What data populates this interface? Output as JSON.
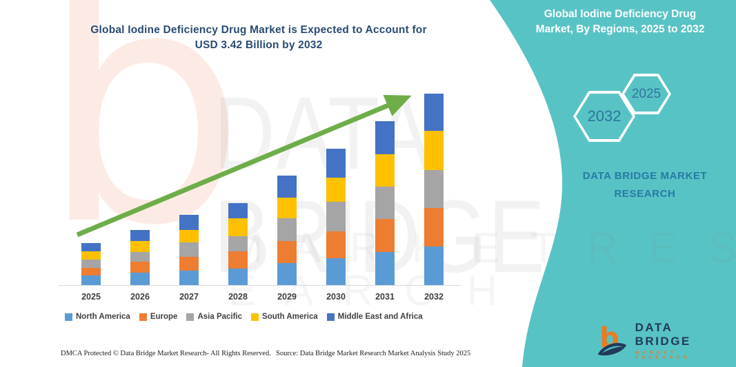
{
  "theme": {
    "teal": "#58C3C4",
    "title_navy": "#2A4B74",
    "hex_text": "#2F749E",
    "brand_blue": "#2779A6",
    "arrow_green": "#6EAD49",
    "axis_gray": "#D8D8D8",
    "label_gray": "#3F3F3F",
    "logo_navy": "#21395C",
    "logo_orange": "#E87C23",
    "watermark_peach": "#FCEBE4",
    "watermark_gray": "rgba(130,130,130,0.10)",
    "watermark_gray2": "rgba(130,130,130,0.08)"
  },
  "header": {
    "title": "Global Iodine Deficiency Drug Market is Expected to Account for\nUSD 3.42 Billion by 2032"
  },
  "side_panel": {
    "title": "Global Iodine Deficiency Drug\nMarket, By Regions, 2025 to 2032",
    "hexagons": [
      {
        "label": "2032"
      },
      {
        "label": "2025"
      }
    ],
    "brand_text": "DATA BRIDGE MARKET\nRESEARCH"
  },
  "watermark": {
    "letter": "b",
    "line1": "DATA BRIDGE",
    "line2": "M A R K E T   R E S E A R C H"
  },
  "chart_data": {
    "type": "bar",
    "stacked": true,
    "title": "Global Iodine Deficiency Drug Market, By Regions, 2025 to 2032",
    "unit": "USD Billion",
    "categories": [
      "2025",
      "2026",
      "2027",
      "2028",
      "2029",
      "2030",
      "2031",
      "2032"
    ],
    "series": [
      {
        "name": "North America",
        "color": "#5B9BD5",
        "values": [
          0.17,
          0.22,
          0.26,
          0.3,
          0.39,
          0.48,
          0.59,
          0.69
        ]
      },
      {
        "name": "Europe",
        "color": "#ED7D31",
        "values": [
          0.14,
          0.2,
          0.25,
          0.3,
          0.4,
          0.48,
          0.59,
          0.69
        ]
      },
      {
        "name": "Asia Pacific",
        "color": "#A5A5A5",
        "values": [
          0.14,
          0.17,
          0.25,
          0.27,
          0.4,
          0.53,
          0.58,
          0.68
        ]
      },
      {
        "name": "South America",
        "color": "#FFC000",
        "values": [
          0.15,
          0.2,
          0.23,
          0.32,
          0.38,
          0.43,
          0.58,
          0.7
        ]
      },
      {
        "name": "Middle East and Africa",
        "color": "#4472C4",
        "values": [
          0.15,
          0.19,
          0.27,
          0.27,
          0.39,
          0.52,
          0.59,
          0.66
        ]
      }
    ],
    "totals": [
      0.75,
      0.98,
      1.26,
      1.46,
      1.96,
      2.44,
      2.93,
      3.42
    ],
    "highlight_value_2032": "USD 3.42 Billion",
    "ylim": [
      0,
      3.6
    ],
    "grid": false,
    "legend_position": "bottom",
    "annotations": [
      "upward green trend arrow from 2025 to 2032"
    ]
  },
  "footer": {
    "left": "DMCA Protected © Data Bridge Market Research-  All Rights Reserved.",
    "right": "Source: Data Bridge Market Research  Market Analysis Study 2025"
  },
  "logo": {
    "name": "DATA BRIDGE",
    "subtitle": "MARKET RESEARCH"
  }
}
